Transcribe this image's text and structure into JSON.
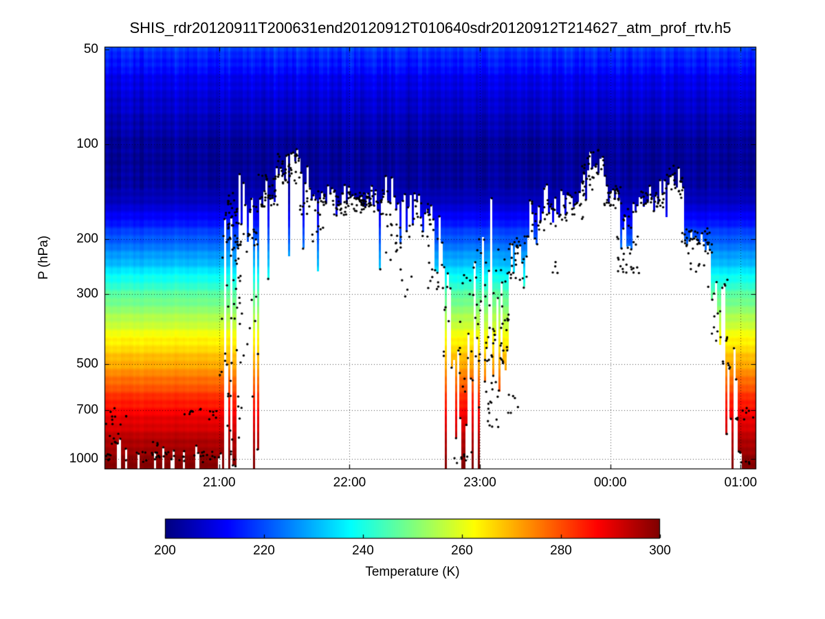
{
  "figure": {
    "background": "#ffffff",
    "frame_color": "#000000"
  },
  "chart_data": {
    "type": "heatmap",
    "title": "SHIS_rdr20120911T200631end20120912T010640sdr20120912T214627_atm_prof_rtv.h5",
    "ylabel": "P (hPa)",
    "colorbar_label": "Temperature (K)",
    "colormap": "jet",
    "grid": "dotted",
    "marker_color": "#000000",
    "missing_color": "#ffffff",
    "axes": {
      "y_scale": "log",
      "p_min": 49,
      "p_max": 1080,
      "t_min": 0.12,
      "t_max": 5.12,
      "x_axis_note": "t values are hours after the 20:00 point of the time axis"
    },
    "x_ticks": [
      {
        "t": 1,
        "label": "21:00"
      },
      {
        "t": 2,
        "label": "22:00"
      },
      {
        "t": 3,
        "label": "23:00"
      },
      {
        "t": 4,
        "label": "00:00"
      },
      {
        "t": 5,
        "label": "01:00"
      }
    ],
    "y_ticks": [
      {
        "p": 50,
        "label": "50"
      },
      {
        "p": 100,
        "label": "100"
      },
      {
        "p": 200,
        "label": "200"
      },
      {
        "p": 300,
        "label": "300"
      },
      {
        "p": 500,
        "label": "500"
      },
      {
        "p": 700,
        "label": "700"
      },
      {
        "p": 1000,
        "label": "1000"
      }
    ],
    "colorbar": {
      "min": 200,
      "max": 300,
      "tick_values": [
        200,
        220,
        240,
        260,
        280,
        300
      ],
      "tick_labels": [
        "200",
        "220",
        "240",
        "260",
        "280",
        "300"
      ]
    },
    "temperature_profile_pT": [
      [
        49,
        218
      ],
      [
        60,
        212
      ],
      [
        80,
        206
      ],
      [
        100,
        203
      ],
      [
        120,
        202
      ],
      [
        140,
        204
      ],
      [
        160,
        209
      ],
      [
        180,
        215
      ],
      [
        200,
        221
      ],
      [
        230,
        229
      ],
      [
        260,
        237
      ],
      [
        300,
        246
      ],
      [
        350,
        254
      ],
      [
        400,
        261
      ],
      [
        450,
        266
      ],
      [
        500,
        271
      ],
      [
        600,
        280
      ],
      [
        700,
        287
      ],
      [
        800,
        292
      ],
      [
        900,
        296
      ],
      [
        1000,
        298
      ],
      [
        1080,
        300
      ]
    ],
    "cloud_top_segments_format": [
      "t0",
      "t1",
      "p_base",
      "jitter_sigma",
      "clear_prob",
      "deep_prob",
      "deep_max_p"
    ],
    "cloud_top_segments": [
      [
        0.12,
        1.03,
        950,
        0.06,
        0.8,
        0.0,
        1060
      ],
      [
        1.03,
        1.12,
        170,
        0.25,
        0.3,
        0.25,
        1060
      ],
      [
        1.12,
        1.3,
        180,
        0.2,
        0.1,
        0.12,
        1060
      ],
      [
        1.3,
        1.44,
        142,
        0.07,
        0.0,
        0.05,
        350
      ],
      [
        1.44,
        1.52,
        125,
        0.06,
        0.0,
        0.04,
        300
      ],
      [
        1.52,
        1.62,
        108,
        0.05,
        0.0,
        0.03,
        250
      ],
      [
        1.62,
        1.7,
        130,
        0.06,
        0.0,
        0.04,
        250
      ],
      [
        1.7,
        1.8,
        150,
        0.08,
        0.0,
        0.05,
        260
      ],
      [
        1.8,
        2.04,
        146,
        0.05,
        0.0,
        0.03,
        220
      ],
      [
        2.04,
        2.18,
        146,
        0.04,
        0.0,
        0.02,
        200
      ],
      [
        2.18,
        2.34,
        152,
        0.08,
        0.0,
        0.08,
        260
      ],
      [
        2.34,
        2.47,
        160,
        0.1,
        0.0,
        0.08,
        320
      ],
      [
        2.47,
        2.63,
        166,
        0.1,
        0.0,
        0.06,
        300
      ],
      [
        2.63,
        2.73,
        215,
        0.12,
        0.0,
        0.1,
        420
      ],
      [
        2.73,
        2.84,
        330,
        0.25,
        0.05,
        0.2,
        900
      ],
      [
        2.84,
        2.96,
        420,
        0.3,
        0.35,
        0.15,
        1000
      ],
      [
        2.96,
        3.1,
        280,
        0.3,
        0.12,
        0.2,
        1000
      ],
      [
        3.1,
        3.22,
        380,
        0.25,
        0.03,
        0.15,
        800
      ],
      [
        3.22,
        3.36,
        228,
        0.12,
        0.0,
        0.08,
        700
      ],
      [
        3.36,
        3.47,
        183,
        0.1,
        0.0,
        0.05,
        420
      ],
      [
        3.47,
        3.62,
        158,
        0.07,
        0.0,
        0.05,
        270
      ],
      [
        3.62,
        3.74,
        148,
        0.06,
        0.0,
        0.05,
        200
      ],
      [
        3.74,
        3.83,
        136,
        0.06,
        0.0,
        0.03,
        200
      ],
      [
        3.83,
        3.95,
        114,
        0.06,
        0.0,
        0.03,
        200
      ],
      [
        3.95,
        4.08,
        140,
        0.06,
        0.0,
        0.04,
        220
      ],
      [
        4.08,
        4.21,
        185,
        0.15,
        0.0,
        0.1,
        280
      ],
      [
        4.21,
        4.34,
        150,
        0.05,
        0.0,
        0.03,
        200
      ],
      [
        4.34,
        4.46,
        140,
        0.07,
        0.0,
        0.04,
        200
      ],
      [
        4.46,
        4.56,
        130,
        0.07,
        0.0,
        0.03,
        200
      ],
      [
        4.56,
        4.77,
        200,
        0.08,
        0.0,
        0.06,
        380
      ],
      [
        4.77,
        4.88,
        310,
        0.2,
        0.02,
        0.15,
        560
      ],
      [
        4.88,
        4.98,
        460,
        0.2,
        0.3,
        0.1,
        900
      ],
      [
        4.98,
        5.12,
        1000,
        0.05,
        0.85,
        0.0,
        1060
      ]
    ],
    "dot_clusters_format": [
      "t0",
      "t1",
      "p_min",
      "p_max",
      "count"
    ],
    "dot_clusters": [
      [
        0.12,
        1.0,
        950,
        1030,
        40
      ],
      [
        0.12,
        0.3,
        690,
        780,
        10
      ],
      [
        0.16,
        0.35,
        820,
        900,
        6
      ],
      [
        0.42,
        0.56,
        880,
        960,
        5
      ],
      [
        0.72,
        0.86,
        690,
        730,
        8
      ],
      [
        0.9,
        1.0,
        690,
        760,
        6
      ],
      [
        0.95,
        1.04,
        500,
        560,
        2
      ],
      [
        1.02,
        1.18,
        150,
        1030,
        55
      ],
      [
        1.05,
        1.3,
        140,
        230,
        45
      ],
      [
        1.18,
        1.3,
        300,
        700,
        8
      ],
      [
        1.3,
        1.45,
        125,
        160,
        28
      ],
      [
        1.45,
        1.62,
        104,
        135,
        32
      ],
      [
        1.62,
        2.3,
        140,
        168,
        80
      ],
      [
        1.7,
        1.8,
        180,
        215,
        6
      ],
      [
        2.05,
        2.18,
        146,
        158,
        22
      ],
      [
        2.28,
        2.42,
        165,
        235,
        16
      ],
      [
        2.35,
        2.5,
        250,
        310,
        5
      ],
      [
        2.45,
        2.65,
        150,
        200,
        18
      ],
      [
        2.6,
        2.72,
        200,
        290,
        12
      ],
      [
        2.72,
        2.95,
        250,
        750,
        22
      ],
      [
        2.8,
        2.95,
        950,
        1040,
        9
      ],
      [
        2.95,
        3.22,
        200,
        550,
        40
      ],
      [
        2.98,
        3.15,
        550,
        820,
        16
      ],
      [
        3.05,
        3.18,
        380,
        520,
        14
      ],
      [
        3.22,
        3.38,
        195,
        270,
        22
      ],
      [
        3.2,
        3.3,
        600,
        720,
        6
      ],
      [
        3.38,
        3.6,
        150,
        190,
        22
      ],
      [
        3.55,
        3.62,
        230,
        270,
        4
      ],
      [
        3.6,
        3.8,
        140,
        175,
        22
      ],
      [
        3.78,
        3.95,
        104,
        140,
        26
      ],
      [
        3.95,
        4.1,
        135,
        160,
        22
      ],
      [
        4.05,
        4.22,
        195,
        265,
        22
      ],
      [
        4.1,
        4.18,
        155,
        185,
        8
      ],
      [
        4.22,
        4.45,
        140,
        160,
        26
      ],
      [
        4.42,
        4.5,
        115,
        140,
        9
      ],
      [
        4.5,
        4.58,
        125,
        150,
        8
      ],
      [
        4.55,
        4.78,
        185,
        225,
        30
      ],
      [
        4.6,
        4.72,
        230,
        265,
        6
      ],
      [
        4.75,
        4.9,
        255,
        440,
        13
      ],
      [
        4.85,
        4.95,
        440,
        540,
        5
      ],
      [
        4.93,
        5.1,
        690,
        770,
        9
      ],
      [
        4.97,
        5.08,
        1000,
        1040,
        4
      ]
    ]
  }
}
